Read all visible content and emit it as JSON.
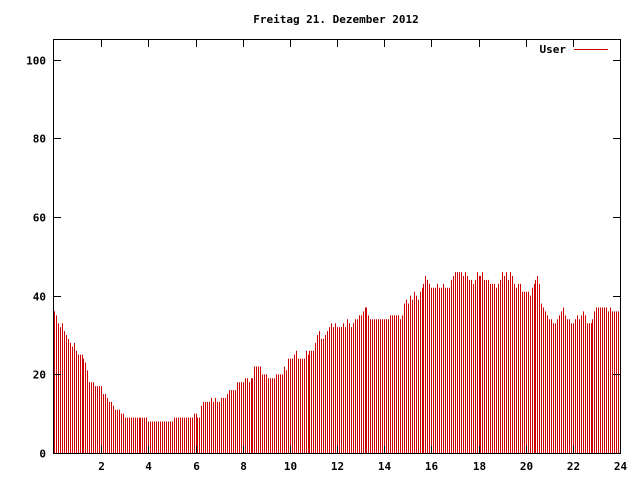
{
  "chart_data": {
    "type": "bar",
    "title": "Freitag 21. Dezember 2012",
    "xlabel": "",
    "ylabel": "",
    "xlim": [
      0,
      24
    ],
    "ylim": [
      0,
      105
    ],
    "x_ticks": [
      "2",
      "4",
      "6",
      "8",
      "10",
      "12",
      "14",
      "16",
      "18",
      "20",
      "22",
      "24"
    ],
    "y_ticks": [
      "0",
      "20",
      "40",
      "60",
      "80",
      "100"
    ],
    "grid": false,
    "legend_position": "top-right",
    "series": [
      {
        "name": "User",
        "color": "#cc0000",
        "sample_interval_minutes": 5,
        "values": [
          36,
          35,
          33,
          32,
          33,
          31,
          30,
          29,
          28,
          27,
          28,
          26,
          25,
          25,
          25,
          24,
          23,
          21,
          18,
          18,
          18,
          17,
          17,
          17,
          17,
          15,
          15,
          14,
          13,
          13,
          12,
          11,
          11,
          11,
          10,
          10,
          9,
          9,
          9,
          9,
          9,
          9,
          9,
          9,
          9,
          9,
          9,
          9,
          8,
          8,
          8,
          8,
          8,
          8,
          8,
          8,
          8,
          8,
          8,
          8,
          8,
          9,
          9,
          9,
          9,
          9,
          9,
          9,
          9,
          9,
          9,
          10,
          10,
          9,
          9,
          12,
          13,
          13,
          13,
          13,
          14,
          13,
          14,
          13,
          13,
          14,
          14,
          14,
          15,
          16,
          16,
          16,
          16,
          18,
          18,
          18,
          18,
          19,
          19,
          18,
          19,
          19,
          22,
          22,
          22,
          22,
          20,
          20,
          20,
          19,
          19,
          19,
          19,
          20,
          20,
          20,
          20,
          22,
          21,
          24,
          24,
          24,
          25,
          26,
          24,
          24,
          24,
          24,
          26,
          25,
          26,
          26,
          26,
          28,
          30,
          31,
          29,
          29,
          30,
          31,
          32,
          33,
          32,
          33,
          32,
          32,
          32,
          33,
          32,
          34,
          33,
          32,
          33,
          34,
          34,
          35,
          35,
          36,
          37,
          37,
          35,
          34,
          34,
          34,
          34,
          34,
          34,
          34,
          34,
          34,
          34,
          35,
          35,
          35,
          35,
          35,
          34,
          35,
          38,
          39,
          38,
          40,
          39,
          41,
          40,
          39,
          41,
          42,
          43,
          45,
          44,
          43,
          42,
          42,
          42,
          43,
          42,
          42,
          43,
          42,
          42,
          42,
          44,
          45,
          46,
          46,
          46,
          46,
          45,
          46,
          45,
          44,
          44,
          43,
          44,
          46,
          45,
          45,
          46,
          44,
          44,
          44,
          43,
          43,
          43,
          42,
          43,
          44,
          46,
          45,
          46,
          44,
          46,
          45,
          43,
          42,
          43,
          43,
          41,
          41,
          41,
          41,
          40,
          42,
          43,
          44,
          45,
          43,
          38,
          37,
          36,
          35,
          34,
          34,
          33,
          33,
          34,
          35,
          36,
          37,
          35,
          34,
          34,
          33,
          33,
          34,
          35,
          34,
          35,
          36,
          35,
          33,
          33,
          33,
          34,
          36,
          37,
          37,
          37,
          37,
          37,
          37,
          36,
          37,
          36,
          36,
          36,
          36,
          37,
          36,
          36,
          37,
          38,
          39,
          42,
          42,
          41,
          42,
          43,
          42,
          43,
          42,
          41,
          42,
          41,
          39,
          38,
          37,
          36,
          35,
          32
        ]
      }
    ]
  }
}
